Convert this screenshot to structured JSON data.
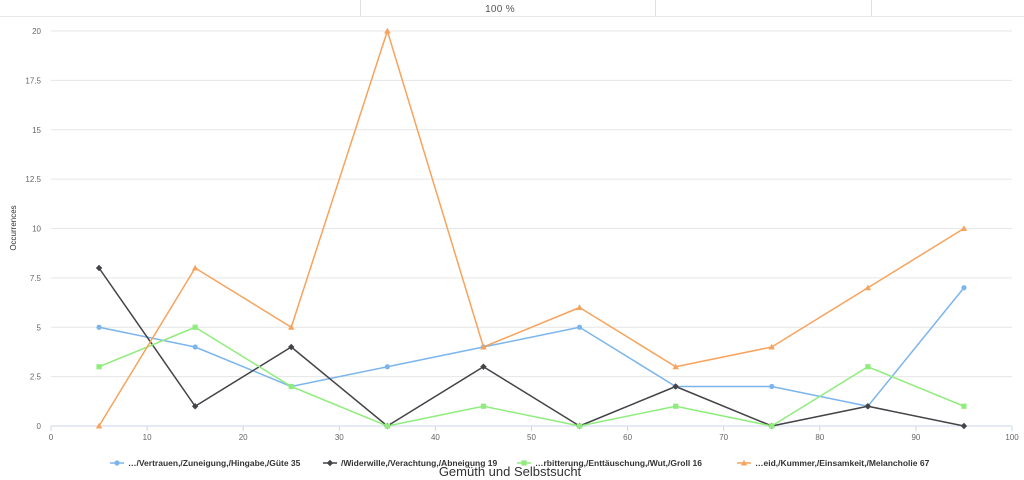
{
  "header": {
    "zoom": "100 %"
  },
  "chart_data": {
    "type": "line",
    "title": "Gemüth und Selbstsucht",
    "xlabel": "",
    "ylabel": "Occurrences",
    "xlim": [
      0,
      100
    ],
    "ylim": [
      0,
      20
    ],
    "x_ticks": [
      0,
      10,
      20,
      30,
      40,
      50,
      60,
      70,
      80,
      90,
      100
    ],
    "y_ticks": [
      "0",
      "2.5",
      "5",
      "7.5",
      "10",
      "12.5",
      "15",
      "17.5",
      "20"
    ],
    "y_tick_values": [
      0,
      2.5,
      5,
      7.5,
      10,
      12.5,
      15,
      17.5,
      20
    ],
    "grid": true,
    "legend_position": "bottom",
    "x": [
      5,
      15,
      25,
      35,
      45,
      55,
      65,
      75,
      85,
      95
    ],
    "series": [
      {
        "name": "…/Vertrauen,/Zuneigung,/Hingabe,/Güte 35",
        "color": "#7cb5ec",
        "marker": "circle",
        "values": [
          5,
          4,
          2,
          3,
          4,
          5,
          2,
          2,
          1,
          7
        ]
      },
      {
        "name": "/Widerwille,/Verachtung,/Abneigung 19",
        "color": "#434348",
        "marker": "diamond",
        "values": [
          8,
          1,
          4,
          0,
          3,
          0,
          2,
          0,
          1,
          0
        ]
      },
      {
        "name": "…rbitterung,/Enttäuschung,/Wut,/Groll 16",
        "color": "#90ed7d",
        "marker": "square",
        "values": [
          3,
          5,
          2,
          0,
          1,
          0,
          1,
          0,
          3,
          1
        ]
      },
      {
        "name": "…eid,/Kummer,/Einsamkeit,/Melancholie 67",
        "color": "#f7a35c",
        "marker": "triangle",
        "values": [
          0,
          8,
          5,
          20,
          4,
          6,
          3,
          4,
          7,
          10
        ]
      }
    ]
  }
}
